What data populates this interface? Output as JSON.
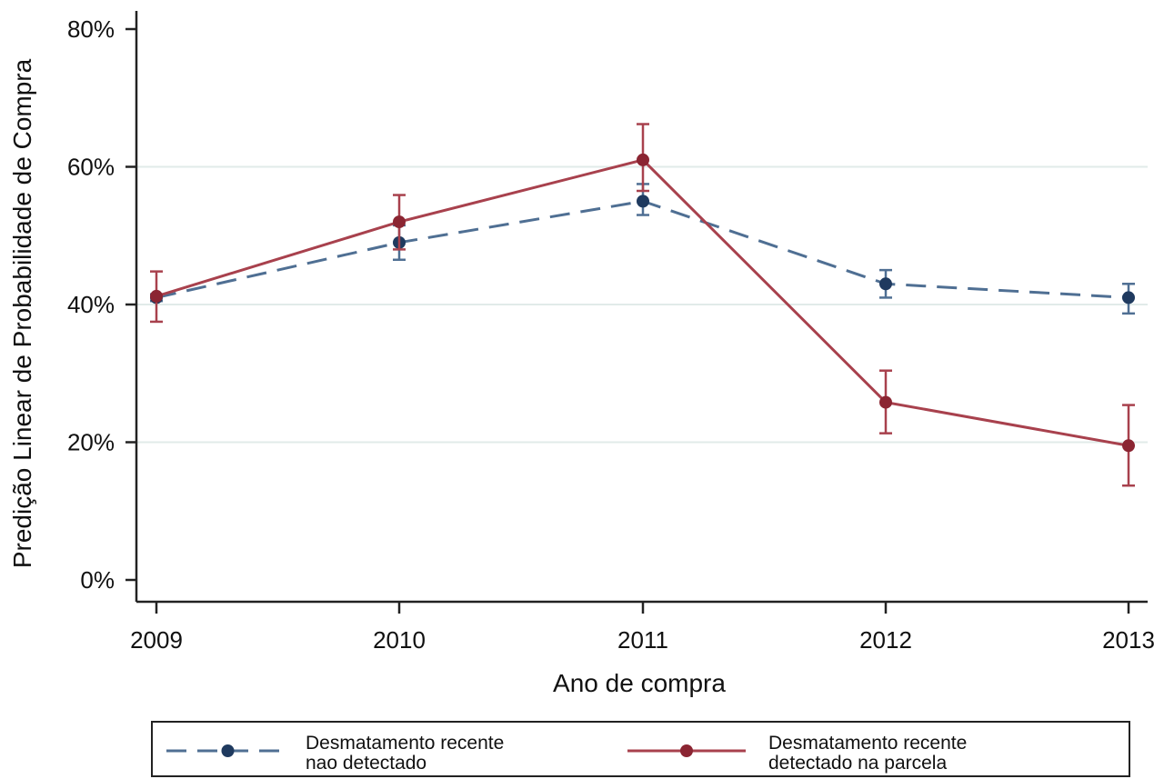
{
  "chart_data": {
    "type": "line",
    "title": "",
    "xlabel": "Ano de compra",
    "ylabel": "Predição Linear de Probabilidade de Compra",
    "x": [
      "2009",
      "2010",
      "2011",
      "2012",
      "2013"
    ],
    "y_ticks": [
      "0%",
      "20%",
      "40%",
      "60%",
      "80%"
    ],
    "y_tick_values": [
      0,
      20,
      40,
      60,
      80
    ],
    "ylim": [
      0,
      80
    ],
    "grid": true,
    "legend_position": "bottom",
    "series": [
      {
        "name": "Desmatamento recente nao detectado",
        "legend_lines": [
          "Desmatamento recente",
          "nao detectado"
        ],
        "color": "#1f3a5f",
        "line_color": "#4f6f93",
        "line_style": "dashed",
        "values": [
          41,
          49,
          55,
          43,
          41
        ],
        "ci_low": [
          40.5,
          46.5,
          53,
          41,
          38.7
        ],
        "ci_high": [
          41.5,
          51.5,
          57.5,
          45,
          43
        ]
      },
      {
        "name": "Desmatamento recente detectado na parcela",
        "legend_lines": [
          "Desmatamento recente",
          "detectado na parcela"
        ],
        "color": "#8b2532",
        "line_color": "#a8414d",
        "line_style": "solid",
        "values": [
          41.2,
          52,
          61,
          25.8,
          19.5
        ],
        "ci_low": [
          37.5,
          48,
          56.5,
          21.3,
          13.7
        ],
        "ci_high": [
          44.8,
          55.9,
          66.2,
          30.4,
          25.4
        ]
      }
    ]
  }
}
